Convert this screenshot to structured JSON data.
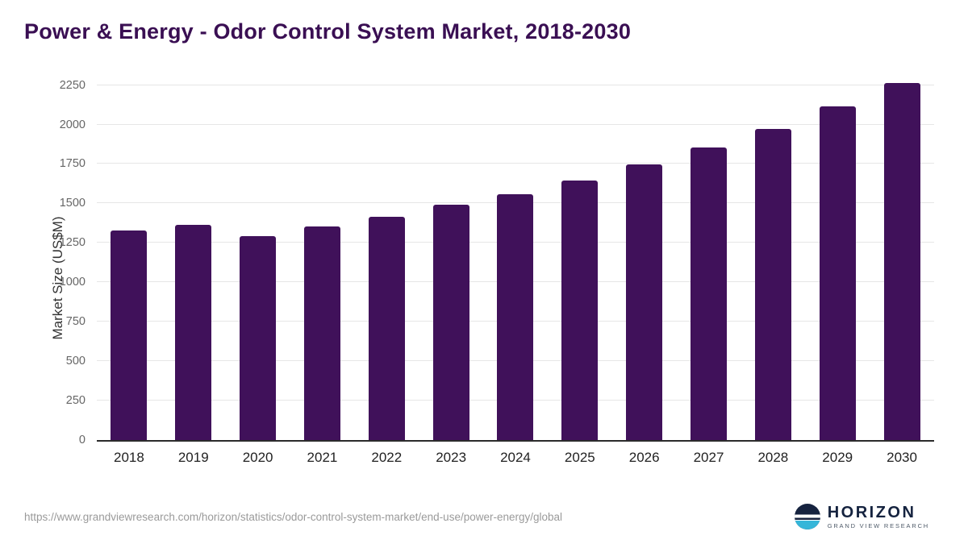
{
  "header": {
    "title": "Power & Energy - Odor Control System Market, 2018-2030"
  },
  "chart_data": {
    "type": "bar",
    "title": "Power & Energy - Odor Control System Market, 2018-2030",
    "categories": [
      "2018",
      "2019",
      "2020",
      "2021",
      "2022",
      "2023",
      "2024",
      "2025",
      "2026",
      "2027",
      "2028",
      "2029",
      "2030"
    ],
    "values": [
      1330,
      1365,
      1295,
      1355,
      1415,
      1490,
      1560,
      1645,
      1745,
      1855,
      1970,
      2115,
      2265
    ],
    "xlabel": "",
    "ylabel": "Market Size (US$M)",
    "ylim": [
      0,
      2250
    ],
    "yticks": [
      0,
      250,
      500,
      750,
      1000,
      1250,
      1500,
      1750,
      2000,
      2250
    ],
    "bar_color": "#40115a",
    "grid": true,
    "legend": false
  },
  "footer": {
    "source_url": "https://www.grandviewresearch.com/horizon/statistics/odor-control-system-market/end-use/power-energy/global",
    "logo_name": "HORIZON",
    "logo_subtitle": "GRAND VIEW RESEARCH"
  }
}
